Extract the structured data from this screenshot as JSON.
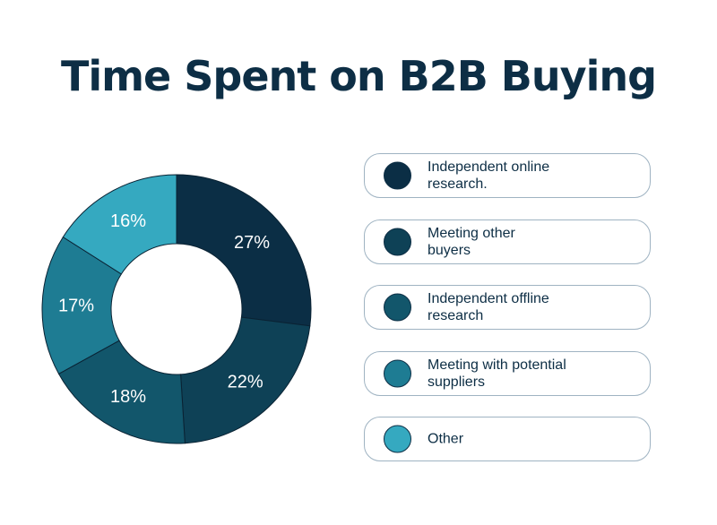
{
  "chart_data": {
    "type": "pie",
    "title": "Time Spent on B2B Buying",
    "categories": [
      "Independent online research.",
      "Meeting other buyers",
      "Independent offline research",
      "Meeting with potential suppliers",
      "Other"
    ],
    "legend_lines": [
      [
        "Independent online",
        "research."
      ],
      [
        "Meeting other",
        "buyers"
      ],
      [
        "Independent offline",
        "research"
      ],
      [
        "Meeting with potential",
        "suppliers"
      ],
      [
        "Other"
      ]
    ],
    "values": [
      27,
      22,
      18,
      17,
      16
    ],
    "value_labels": [
      "27%",
      "22%",
      "18%",
      "17%",
      "16%"
    ],
    "colors": [
      "#0b2e45",
      "#0e4156",
      "#12566b",
      "#1e7c93",
      "#35a9c0"
    ],
    "legend_position": "right",
    "style": "donut"
  }
}
